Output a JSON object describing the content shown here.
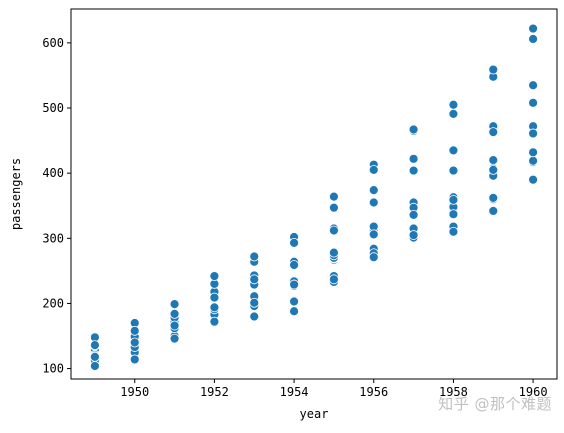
{
  "chart_data": {
    "type": "scatter",
    "title": "",
    "xlabel": "year",
    "ylabel": "passengers",
    "xlim": [
      1948.4,
      1960.6
    ],
    "ylim": [
      84,
      652
    ],
    "x_ticks": [
      1950,
      1952,
      1954,
      1956,
      1958,
      1960
    ],
    "y_ticks": [
      100,
      200,
      300,
      400,
      500,
      600
    ],
    "grid": false,
    "marker_color": "#1f77b4",
    "series": [
      {
        "points": [
          {
            "x": 1949,
            "y": 112
          },
          {
            "x": 1949,
            "y": 118
          },
          {
            "x": 1949,
            "y": 132
          },
          {
            "x": 1949,
            "y": 129
          },
          {
            "x": 1949,
            "y": 121
          },
          {
            "x": 1949,
            "y": 135
          },
          {
            "x": 1949,
            "y": 148
          },
          {
            "x": 1949,
            "y": 148
          },
          {
            "x": 1949,
            "y": 136
          },
          {
            "x": 1949,
            "y": 119
          },
          {
            "x": 1949,
            "y": 104
          },
          {
            "x": 1949,
            "y": 118
          },
          {
            "x": 1950,
            "y": 115
          },
          {
            "x": 1950,
            "y": 126
          },
          {
            "x": 1950,
            "y": 141
          },
          {
            "x": 1950,
            "y": 135
          },
          {
            "x": 1950,
            "y": 125
          },
          {
            "x": 1950,
            "y": 149
          },
          {
            "x": 1950,
            "y": 170
          },
          {
            "x": 1950,
            "y": 170
          },
          {
            "x": 1950,
            "y": 158
          },
          {
            "x": 1950,
            "y": 133
          },
          {
            "x": 1950,
            "y": 114
          },
          {
            "x": 1950,
            "y": 140
          },
          {
            "x": 1951,
            "y": 145
          },
          {
            "x": 1951,
            "y": 150
          },
          {
            "x": 1951,
            "y": 178
          },
          {
            "x": 1951,
            "y": 163
          },
          {
            "x": 1951,
            "y": 172
          },
          {
            "x": 1951,
            "y": 178
          },
          {
            "x": 1951,
            "y": 199
          },
          {
            "x": 1951,
            "y": 199
          },
          {
            "x": 1951,
            "y": 184
          },
          {
            "x": 1951,
            "y": 162
          },
          {
            "x": 1951,
            "y": 146
          },
          {
            "x": 1951,
            "y": 166
          },
          {
            "x": 1952,
            "y": 171
          },
          {
            "x": 1952,
            "y": 180
          },
          {
            "x": 1952,
            "y": 193
          },
          {
            "x": 1952,
            "y": 181
          },
          {
            "x": 1952,
            "y": 183
          },
          {
            "x": 1952,
            "y": 218
          },
          {
            "x": 1952,
            "y": 230
          },
          {
            "x": 1952,
            "y": 242
          },
          {
            "x": 1952,
            "y": 209
          },
          {
            "x": 1952,
            "y": 191
          },
          {
            "x": 1952,
            "y": 172
          },
          {
            "x": 1952,
            "y": 194
          },
          {
            "x": 1953,
            "y": 196
          },
          {
            "x": 1953,
            "y": 196
          },
          {
            "x": 1953,
            "y": 236
          },
          {
            "x": 1953,
            "y": 235
          },
          {
            "x": 1953,
            "y": 229
          },
          {
            "x": 1953,
            "y": 243
          },
          {
            "x": 1953,
            "y": 264
          },
          {
            "x": 1953,
            "y": 272
          },
          {
            "x": 1953,
            "y": 237
          },
          {
            "x": 1953,
            "y": 211
          },
          {
            "x": 1953,
            "y": 180
          },
          {
            "x": 1953,
            "y": 201
          },
          {
            "x": 1954,
            "y": 204
          },
          {
            "x": 1954,
            "y": 188
          },
          {
            "x": 1954,
            "y": 235
          },
          {
            "x": 1954,
            "y": 227
          },
          {
            "x": 1954,
            "y": 234
          },
          {
            "x": 1954,
            "y": 264
          },
          {
            "x": 1954,
            "y": 302
          },
          {
            "x": 1954,
            "y": 293
          },
          {
            "x": 1954,
            "y": 259
          },
          {
            "x": 1954,
            "y": 229
          },
          {
            "x": 1954,
            "y": 203
          },
          {
            "x": 1954,
            "y": 229
          },
          {
            "x": 1955,
            "y": 242
          },
          {
            "x": 1955,
            "y": 233
          },
          {
            "x": 1955,
            "y": 267
          },
          {
            "x": 1955,
            "y": 269
          },
          {
            "x": 1955,
            "y": 270
          },
          {
            "x": 1955,
            "y": 315
          },
          {
            "x": 1955,
            "y": 364
          },
          {
            "x": 1955,
            "y": 347
          },
          {
            "x": 1955,
            "y": 312
          },
          {
            "x": 1955,
            "y": 274
          },
          {
            "x": 1955,
            "y": 237
          },
          {
            "x": 1955,
            "y": 278
          },
          {
            "x": 1956,
            "y": 284
          },
          {
            "x": 1956,
            "y": 277
          },
          {
            "x": 1956,
            "y": 317
          },
          {
            "x": 1956,
            "y": 313
          },
          {
            "x": 1956,
            "y": 318
          },
          {
            "x": 1956,
            "y": 374
          },
          {
            "x": 1956,
            "y": 413
          },
          {
            "x": 1956,
            "y": 405
          },
          {
            "x": 1956,
            "y": 355
          },
          {
            "x": 1956,
            "y": 306
          },
          {
            "x": 1956,
            "y": 271
          },
          {
            "x": 1956,
            "y": 306
          },
          {
            "x": 1957,
            "y": 315
          },
          {
            "x": 1957,
            "y": 301
          },
          {
            "x": 1957,
            "y": 356
          },
          {
            "x": 1957,
            "y": 348
          },
          {
            "x": 1957,
            "y": 355
          },
          {
            "x": 1957,
            "y": 422
          },
          {
            "x": 1957,
            "y": 465
          },
          {
            "x": 1957,
            "y": 467
          },
          {
            "x": 1957,
            "y": 404
          },
          {
            "x": 1957,
            "y": 347
          },
          {
            "x": 1957,
            "y": 305
          },
          {
            "x": 1957,
            "y": 336
          },
          {
            "x": 1958,
            "y": 340
          },
          {
            "x": 1958,
            "y": 318
          },
          {
            "x": 1958,
            "y": 362
          },
          {
            "x": 1958,
            "y": 348
          },
          {
            "x": 1958,
            "y": 363
          },
          {
            "x": 1958,
            "y": 435
          },
          {
            "x": 1958,
            "y": 491
          },
          {
            "x": 1958,
            "y": 505
          },
          {
            "x": 1958,
            "y": 404
          },
          {
            "x": 1958,
            "y": 359
          },
          {
            "x": 1958,
            "y": 310
          },
          {
            "x": 1958,
            "y": 337
          },
          {
            "x": 1959,
            "y": 360
          },
          {
            "x": 1959,
            "y": 342
          },
          {
            "x": 1959,
            "y": 406
          },
          {
            "x": 1959,
            "y": 396
          },
          {
            "x": 1959,
            "y": 420
          },
          {
            "x": 1959,
            "y": 472
          },
          {
            "x": 1959,
            "y": 548
          },
          {
            "x": 1959,
            "y": 559
          },
          {
            "x": 1959,
            "y": 463
          },
          {
            "x": 1959,
            "y": 407
          },
          {
            "x": 1959,
            "y": 362
          },
          {
            "x": 1959,
            "y": 405
          },
          {
            "x": 1960,
            "y": 417
          },
          {
            "x": 1960,
            "y": 391
          },
          {
            "x": 1960,
            "y": 419
          },
          {
            "x": 1960,
            "y": 461
          },
          {
            "x": 1960,
            "y": 472
          },
          {
            "x": 1960,
            "y": 535
          },
          {
            "x": 1960,
            "y": 622
          },
          {
            "x": 1960,
            "y": 606
          },
          {
            "x": 1960,
            "y": 508
          },
          {
            "x": 1960,
            "y": 461
          },
          {
            "x": 1960,
            "y": 390
          },
          {
            "x": 1960,
            "y": 432
          }
        ]
      }
    ]
  },
  "watermark": "知乎 @那个难题"
}
